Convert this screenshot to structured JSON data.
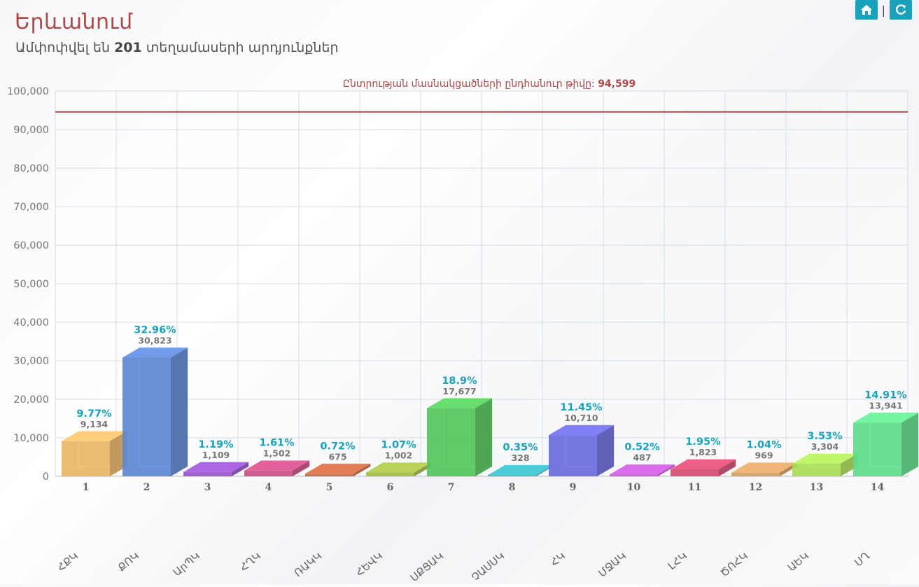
{
  "header": {
    "title": "Երևանում",
    "subtitle_prefix": "Ամփոփվել են",
    "subtitle_count": "201",
    "subtitle_suffix": "տեղամասերի արդյունքներ"
  },
  "toolbar": {
    "home_icon": "home-icon",
    "refresh_icon": "refresh-icon",
    "accent": "#1aa1bc"
  },
  "chart_data": {
    "type": "bar",
    "categories": [
      "1",
      "2",
      "3",
      "4",
      "5",
      "6",
      "7",
      "8",
      "9",
      "10",
      "11",
      "12",
      "13",
      "14"
    ],
    "party_labels": [
      "ՀՔԿ",
      "ՔՈԿ",
      "ԱրՊԿ",
      "ՀՂԿ",
      "ՌԱԿԿ",
      "ՀԵՎԿ",
      "ՍՔՑԱԿ",
      "ՉԱՍՍԿ",
      "ՀԿ",
      "ՄՋԱԿ",
      "ԼՀԿ",
      "ԾՈՀԿ",
      "ԱԵԿ",
      "ՍՂ"
    ],
    "values": [
      9134,
      30823,
      1109,
      1502,
      675,
      1002,
      17677,
      328,
      10710,
      487,
      1823,
      969,
      3304,
      13941
    ],
    "value_labels": [
      "9,134",
      "30,823",
      "1,109",
      "1,502",
      "675",
      "1,002",
      "17,677",
      "328",
      "10,710",
      "487",
      "1,823",
      "969",
      "3,304",
      "13,941"
    ],
    "percent_labels": [
      "9.77%",
      "32.96%",
      "1.19%",
      "1.61%",
      "0.72%",
      "1.07%",
      "18.9%",
      "0.35%",
      "11.45%",
      "0.52%",
      "1.95%",
      "1.04%",
      "3.53%",
      "14.91%"
    ],
    "colors": [
      "#e8b567",
      "#5f87d1",
      "#9656c9",
      "#c94f86",
      "#c76a44",
      "#a2bb48",
      "#55c45b",
      "#3bb3bf",
      "#6b6cdc",
      "#c05ad2",
      "#d44d72",
      "#d4a064",
      "#a9dc58",
      "#5fdc8a"
    ],
    "ylim": [
      0,
      100000
    ],
    "yticks": [
      0,
      10000,
      20000,
      30000,
      40000,
      50000,
      60000,
      70000,
      80000,
      90000,
      100000
    ],
    "ytick_labels": [
      "0",
      "10,000",
      "20,000",
      "30,000",
      "40,000",
      "50,000",
      "60,000",
      "70,000",
      "80,000",
      "90,000",
      "100,000"
    ],
    "total_line": 94599,
    "total_label_text": "Ընտրության մասնակցածների ընդհանուր թիվը:",
    "total_label_value": "94,599",
    "total_color": "#a94a4a",
    "grid": true
  }
}
